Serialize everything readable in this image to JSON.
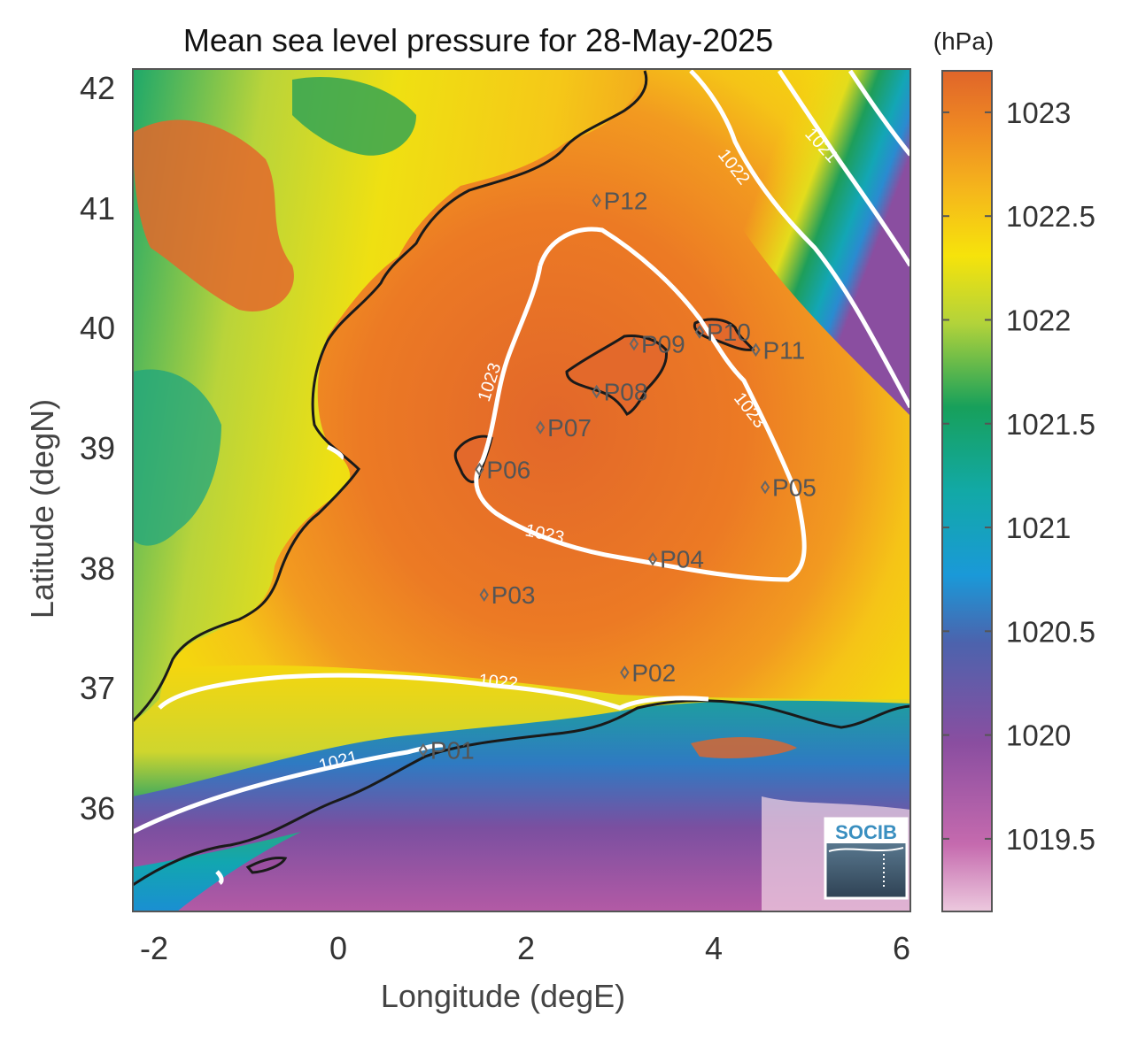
{
  "title": "Mean sea level pressure for 28-May-2025",
  "xlabel": "Longitude (degE)",
  "ylabel": "Latitude (degN)",
  "colorbar": {
    "unit": "(hPa)",
    "ticks": [
      "1023",
      "1022.5",
      "1022",
      "1021.5",
      "1021",
      "1020.5",
      "1020",
      "1019.5"
    ],
    "range": [
      1019.15,
      1023.2
    ]
  },
  "x_ticks": [
    "-2",
    "0",
    "2",
    "4",
    "6"
  ],
  "y_ticks": [
    "42",
    "41",
    "40",
    "39",
    "38",
    "37",
    "36"
  ],
  "contour_labels": [
    "1021",
    "1022",
    "1023",
    "1023",
    "1023",
    "1022",
    "1021"
  ],
  "stations": [
    {
      "name": "P01",
      "lon": 0.85,
      "lat": 36.5
    },
    {
      "name": "P02",
      "lon": 3.0,
      "lat": 37.15
    },
    {
      "name": "P03",
      "lon": 1.5,
      "lat": 37.8
    },
    {
      "name": "P04",
      "lon": 3.3,
      "lat": 38.1
    },
    {
      "name": "P05",
      "lon": 4.5,
      "lat": 38.7
    },
    {
      "name": "P06",
      "lon": 1.45,
      "lat": 38.85
    },
    {
      "name": "P07",
      "lon": 2.1,
      "lat": 39.2
    },
    {
      "name": "P08",
      "lon": 2.7,
      "lat": 39.5
    },
    {
      "name": "P09",
      "lon": 3.1,
      "lat": 39.9
    },
    {
      "name": "P10",
      "lon": 3.8,
      "lat": 40.0
    },
    {
      "name": "P11",
      "lon": 4.4,
      "lat": 39.85
    },
    {
      "name": "P12",
      "lon": 2.7,
      "lat": 41.1
    }
  ],
  "logo_text": "SOCIB",
  "colors": {
    "colormap": [
      "#ecc9de",
      "#a04a9c",
      "#6f4f9e",
      "#1f86c8",
      "#12a9cc",
      "#11a58a",
      "#1f9e57",
      "#bfd534",
      "#f5e00a",
      "#f4a41e",
      "#ee7f23",
      "#e2672a"
    ],
    "contour": "#ffffff",
    "coastline": "#1a1a1a",
    "station": "#666666"
  }
}
